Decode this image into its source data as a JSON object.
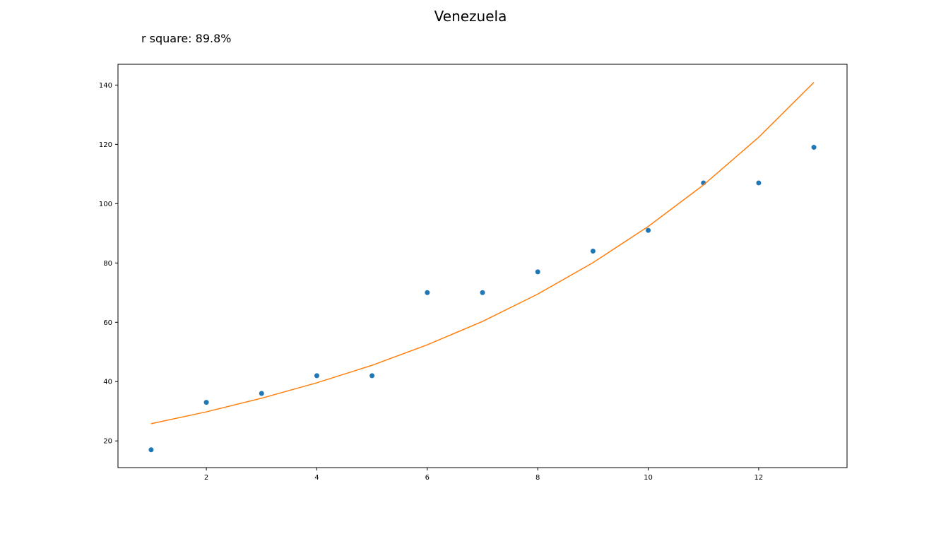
{
  "chart_data": {
    "type": "scatter",
    "title": "Venezuela",
    "annotation": "r square: 89.8%",
    "xlabel": "",
    "ylabel": "",
    "xlim": [
      0.4,
      13.6
    ],
    "ylim": [
      11,
      147
    ],
    "x_ticks": [
      2,
      4,
      6,
      8,
      10,
      12
    ],
    "y_ticks": [
      20,
      40,
      60,
      80,
      100,
      120,
      140
    ],
    "grid": false,
    "series": [
      {
        "type": "scatter",
        "color": "#1f77b4",
        "x": [
          1,
          2,
          3,
          4,
          5,
          6,
          7,
          8,
          9,
          10,
          11,
          12,
          13
        ],
        "y": [
          17,
          33,
          36,
          42,
          42,
          70,
          70,
          77,
          84,
          91,
          107,
          107,
          119
        ]
      },
      {
        "type": "line",
        "color": "#ff7f0e",
        "x": [
          1,
          2,
          3,
          4,
          5,
          6,
          7,
          8,
          9,
          10,
          11,
          12,
          13
        ],
        "y": [
          25.8,
          29.8,
          34.4,
          39.6,
          45.5,
          52.4,
          60.3,
          69.5,
          80.1,
          92.3,
          106.3,
          122.4,
          140.9
        ]
      }
    ]
  }
}
